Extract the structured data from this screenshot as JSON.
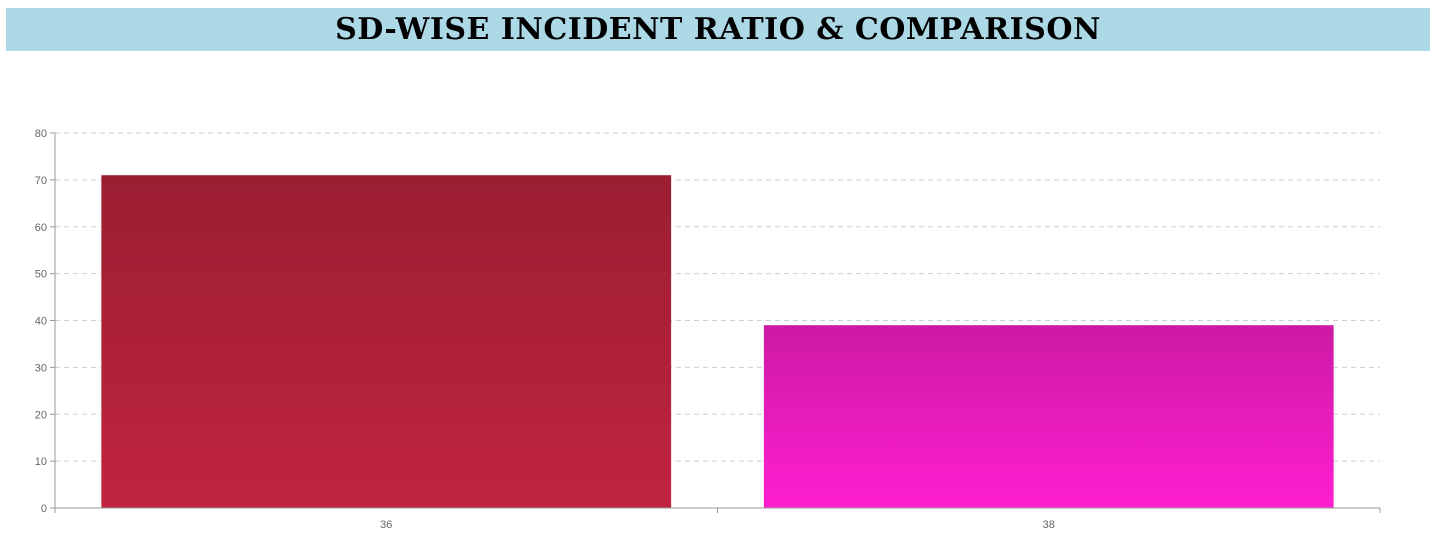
{
  "header": {
    "title": "SD-WISE INCIDENT RATIO & COMPARISON"
  },
  "chart_data": {
    "type": "bar",
    "title": "SD-WISE INCIDENT RATIO & COMPARISON",
    "categories": [
      "36",
      "38"
    ],
    "values": [
      71,
      39
    ],
    "bar_colors": [
      {
        "top": "#9a1e31",
        "bottom": "#c12340"
      },
      {
        "top": "#cc1aa4",
        "bottom": "#ff1ed0"
      }
    ],
    "xlabel": "",
    "ylabel": "",
    "ylim": [
      0,
      80
    ],
    "yticks": [
      "0",
      "10",
      "20",
      "30",
      "40",
      "50",
      "60",
      "70",
      "80"
    ],
    "grid": true,
    "legend": false
  }
}
